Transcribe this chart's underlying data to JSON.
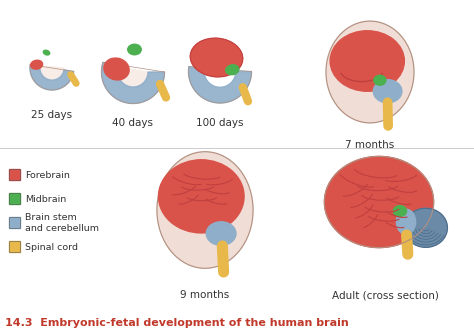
{
  "title": "14.3  Embryonic-fetal development of the human brain",
  "title_color": "#c0392b",
  "title_fontsize": 8.0,
  "title_bold": true,
  "background_color": "#ffffff",
  "stage_labels": [
    "25 days",
    "40 days",
    "100 days",
    "7 months",
    "9 months",
    "Adult (cross section)"
  ],
  "legend_items": [
    {
      "label": "Forebrain",
      "color": "#d9534a"
    },
    {
      "label": "Midbrain",
      "color": "#4caf50"
    },
    {
      "label": "Brain stem\nand cerebellum",
      "color": "#8eaec9"
    },
    {
      "label": "Spinal cord",
      "color": "#e8b84a"
    }
  ],
  "forebrain_color": "#d9534a",
  "forebrain_light": "#e8847a",
  "midbrain_color": "#4caf50",
  "brainstem_color": "#8eaec9",
  "brainstem_dark": "#6a8aa8",
  "spinalcord_color": "#e8b84a",
  "skin_color": "#f0ddd4",
  "skin_light": "#f8ece6",
  "skin_outline": "#b09080",
  "fold_color": "#c04040",
  "stage_label_fontsize": 7.5,
  "stage_label_color": "#333333",
  "divider_color": "#cccccc",
  "legend_fontsize": 6.8
}
